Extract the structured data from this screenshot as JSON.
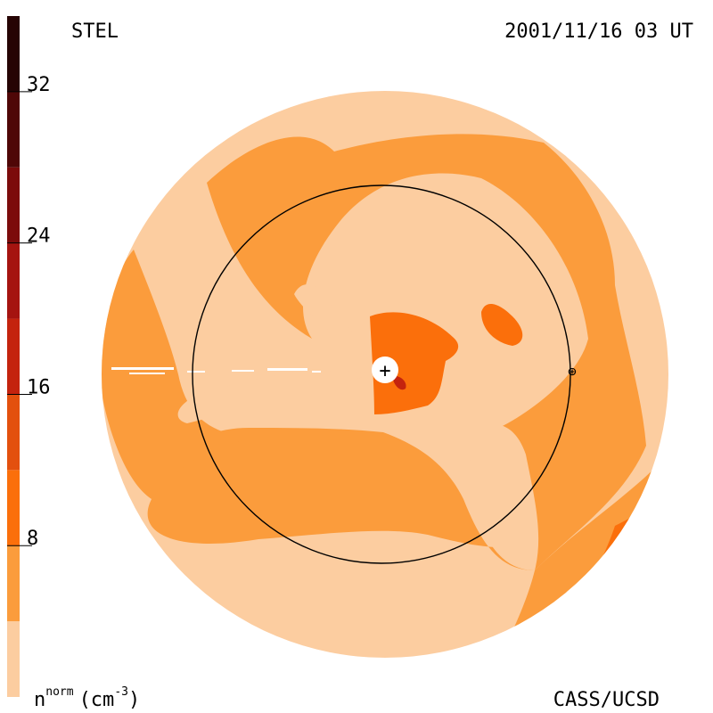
{
  "header": {
    "model": "STEL",
    "timestamp": "2001/11/16 03 UT"
  },
  "footer": {
    "credit": "CASS/UCSD"
  },
  "legend": {
    "quantity_base": "n",
    "quantity_sup": "norm",
    "unit_open": "(cm",
    "unit_sup": "-3",
    "unit_close": ")",
    "ticks": [
      "32",
      "24",
      "16",
      "8"
    ],
    "bands": [
      {
        "from": 0,
        "to": 4,
        "color": "#fccda0"
      },
      {
        "from": 4,
        "to": 8,
        "color": "#fb9c3c"
      },
      {
        "from": 8,
        "to": 12,
        "color": "#fb6f0b"
      },
      {
        "from": 12,
        "to": 16,
        "color": "#e3500e"
      },
      {
        "from": 16,
        "to": 20,
        "color": "#c4230e"
      },
      {
        "from": 20,
        "to": 24,
        "color": "#a51410"
      },
      {
        "from": 24,
        "to": 28,
        "color": "#7c0b0b"
      },
      {
        "from": 28,
        "to": 32,
        "color": "#4f0707"
      },
      {
        "from": 32,
        "to": 36,
        "color": "#260404"
      }
    ]
  },
  "map": {
    "center_symbol": "+",
    "earth_symbol": "⊕",
    "colors": {
      "lightest": "#fccda0",
      "light": "#fb9c3c",
      "mid": "#fb6f0b",
      "dark": "#c4230e",
      "orbit": "#000000",
      "sun": "#ffffff"
    }
  }
}
